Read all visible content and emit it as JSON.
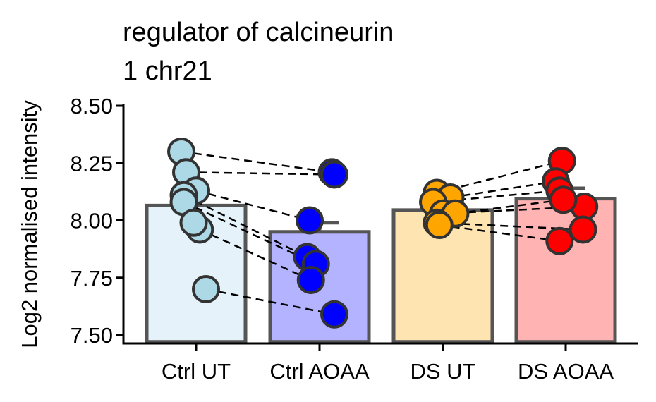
{
  "chart_data": {
    "type": "bar",
    "title_lines": [
      "regulator of calcineurin",
      "1 chr21"
    ],
    "xlabel": "",
    "ylabel": "Log2 normalised intensity",
    "ylim": [
      7.47,
      8.5
    ],
    "yticks": [
      7.5,
      7.75,
      8.0,
      8.25,
      8.5
    ],
    "ytick_labels": [
      "7.50",
      "7.75",
      "8.00",
      "8.25",
      "8.50"
    ],
    "categories": [
      "Ctrl UT",
      "Ctrl AOAA",
      "DS UT",
      "DS AOAA"
    ],
    "values": [
      8.065,
      7.95,
      8.045,
      8.095
    ],
    "errors": [
      0.0,
      0.04,
      0.0,
      0.045
    ],
    "bar_fill_colors": [
      "#e6f2f9",
      "#b3b3ff",
      "#fde4b1",
      "#ffb3b3"
    ],
    "point_colors": [
      "#add8e6",
      "#0000ff",
      "#ffa500",
      "#ff0000"
    ],
    "grid": false,
    "legend": "none",
    "points": [
      {
        "group": 0,
        "x_offset": -0.12,
        "y": 8.3
      },
      {
        "group": 0,
        "x_offset": -0.08,
        "y": 8.21
      },
      {
        "group": 0,
        "x_offset": 0.0,
        "y": 8.13
      },
      {
        "group": 0,
        "x_offset": -0.1,
        "y": 8.11
      },
      {
        "group": 0,
        "x_offset": -0.1,
        "y": 8.08
      },
      {
        "group": 0,
        "x_offset": 0.03,
        "y": 7.96
      },
      {
        "group": 0,
        "x_offset": -0.02,
        "y": 7.99
      },
      {
        "group": 0,
        "x_offset": 0.08,
        "y": 7.7
      },
      {
        "group": 1,
        "x_offset": 0.1,
        "y": 8.21
      },
      {
        "group": 1,
        "x_offset": 0.12,
        "y": 8.2
      },
      {
        "group": 1,
        "x_offset": -0.08,
        "y": 8.0
      },
      {
        "group": 1,
        "x_offset": -0.1,
        "y": 7.84
      },
      {
        "group": 1,
        "x_offset": -0.03,
        "y": 7.81
      },
      {
        "group": 1,
        "x_offset": -0.07,
        "y": 7.74
      },
      {
        "group": 1,
        "x_offset": 0.12,
        "y": 7.59
      },
      {
        "group": 2,
        "x_offset": -0.05,
        "y": 8.12
      },
      {
        "group": 2,
        "x_offset": 0.06,
        "y": 8.1
      },
      {
        "group": 2,
        "x_offset": -0.08,
        "y": 8.08
      },
      {
        "group": 2,
        "x_offset": 0.0,
        "y": 8.03
      },
      {
        "group": 2,
        "x_offset": 0.1,
        "y": 8.03
      },
      {
        "group": 2,
        "x_offset": -0.05,
        "y": 7.99
      },
      {
        "group": 2,
        "x_offset": -0.03,
        "y": 7.98
      },
      {
        "group": 3,
        "x_offset": -0.03,
        "y": 8.26
      },
      {
        "group": 3,
        "x_offset": -0.08,
        "y": 8.17
      },
      {
        "group": 3,
        "x_offset": -0.05,
        "y": 8.13
      },
      {
        "group": 3,
        "x_offset": 0.15,
        "y": 8.06
      },
      {
        "group": 3,
        "x_offset": -0.02,
        "y": 8.09
      },
      {
        "group": 3,
        "x_offset": 0.14,
        "y": 7.96
      },
      {
        "group": 3,
        "x_offset": -0.05,
        "y": 7.91
      }
    ],
    "pairs": [
      [
        0,
        8
      ],
      [
        1,
        9
      ],
      [
        2,
        10
      ],
      [
        4,
        12
      ],
      [
        3,
        11
      ],
      [
        5,
        13
      ],
      [
        7,
        14
      ],
      [
        15,
        22
      ],
      [
        16,
        23
      ],
      [
        17,
        24
      ],
      [
        18,
        25
      ],
      [
        19,
        26
      ],
      [
        20,
        27
      ],
      [
        21,
        28
      ]
    ]
  }
}
